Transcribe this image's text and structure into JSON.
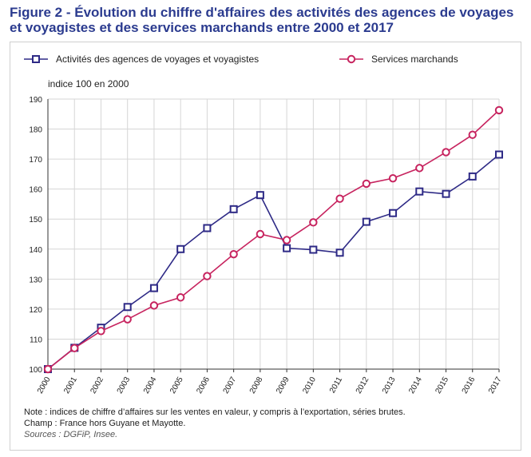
{
  "figure": {
    "title": "Figure 2 - Évolution du chiffre d'affaires des activités des agences de voyages et voyagistes et des services marchands entre 2000 et 2017",
    "note": "Note : indices de chiffre d’affaires sur les ventes en valeur, y compris à l’exportation, séries brutes.",
    "scope": "Champ : France hors Guyane et Mayotte.",
    "sources": "Sources : DGFiP, Insee."
  },
  "chart_data": {
    "type": "line",
    "title": "",
    "ylabel": "indice 100 en 2000",
    "xlabel": "",
    "ylim": [
      100,
      190
    ],
    "yticks": [
      100,
      110,
      120,
      130,
      140,
      150,
      160,
      170,
      180,
      190
    ],
    "grid": true,
    "legend_position": "top",
    "x": [
      "2000",
      "2001",
      "2002",
      "2003",
      "2004",
      "2005",
      "2006",
      "2007",
      "2008",
      "2009",
      "2010",
      "2011",
      "2012",
      "2013",
      "2014",
      "2015",
      "2016",
      "2017"
    ],
    "series": [
      {
        "name": "Activités des agences de voyages et voyagistes",
        "color": "#2e2a86",
        "marker": "square",
        "values": [
          100,
          107.1,
          113.8,
          120.7,
          127,
          140,
          147,
          153.3,
          158,
          140.3,
          139.8,
          138.8,
          149.1,
          152,
          159.2,
          158.4,
          164.2,
          171.5
        ]
      },
      {
        "name": "Services marchands",
        "color": "#c7245f",
        "marker": "circle",
        "values": [
          100,
          107,
          112.7,
          116.6,
          121.2,
          123.9,
          131,
          138.3,
          145,
          143,
          148.9,
          156.8,
          161.8,
          163.6,
          167,
          172.3,
          178.1,
          186.3
        ]
      }
    ]
  }
}
